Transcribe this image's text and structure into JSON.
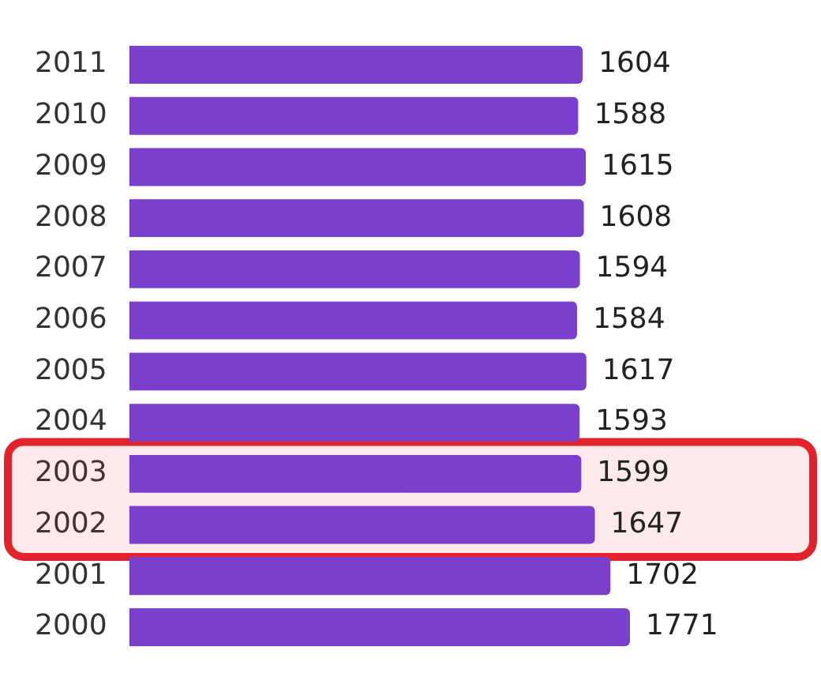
{
  "chart_data": {
    "type": "bar",
    "orientation": "horizontal",
    "categories": [
      "2011",
      "2010",
      "2009",
      "2008",
      "2007",
      "2006",
      "2005",
      "2004",
      "2003",
      "2002",
      "2001",
      "2000"
    ],
    "values": [
      1604,
      1588,
      1615,
      1608,
      1594,
      1584,
      1617,
      1593,
      1599,
      1647,
      1702,
      1771
    ],
    "color": "#7b3fce",
    "data_labels": true,
    "grid": false,
    "legend": false,
    "tick_labels": "y",
    "bands": [
      {
        "axis": "y",
        "from": "2003",
        "to": "2002",
        "color": "#e3232b"
      }
    ]
  }
}
